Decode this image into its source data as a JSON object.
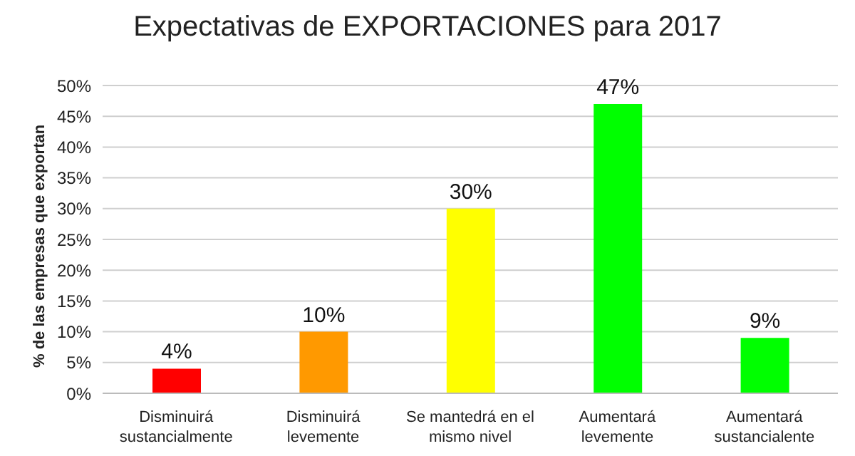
{
  "chart_data": {
    "type": "bar",
    "title": "Expectativas de EXPORTACIONES para 2017",
    "ylabel": "% de las empresas que exportan",
    "categories": [
      "Disminuirá sustancialmente",
      "Disminuirá levemente",
      "Se mantedrá en el mismo nivel",
      "Aumentará levemente",
      "Aumentará sustancialente"
    ],
    "values": [
      4,
      10,
      30,
      47,
      9
    ],
    "colors": [
      "#ff0000",
      "#ff9900",
      "#ffff00",
      "#00ff00",
      "#00ff00"
    ],
    "value_labels": [
      "4%",
      "10%",
      "30%",
      "47%",
      "9%"
    ],
    "ylim": [
      0,
      50
    ],
    "yticks": [
      {
        "value": 0,
        "label": "0%"
      },
      {
        "value": 5,
        "label": "5%"
      },
      {
        "value": 10,
        "label": "10%"
      },
      {
        "value": 15,
        "label": "15%"
      },
      {
        "value": 20,
        "label": "20%"
      },
      {
        "value": 25,
        "label": "25%"
      },
      {
        "value": 30,
        "label": "30%"
      },
      {
        "value": 35,
        "label": "35%"
      },
      {
        "value": 40,
        "label": "40%"
      },
      {
        "value": 45,
        "label": "45%"
      },
      {
        "value": 50,
        "label": "50%"
      }
    ],
    "grid": "y",
    "legend": false
  }
}
